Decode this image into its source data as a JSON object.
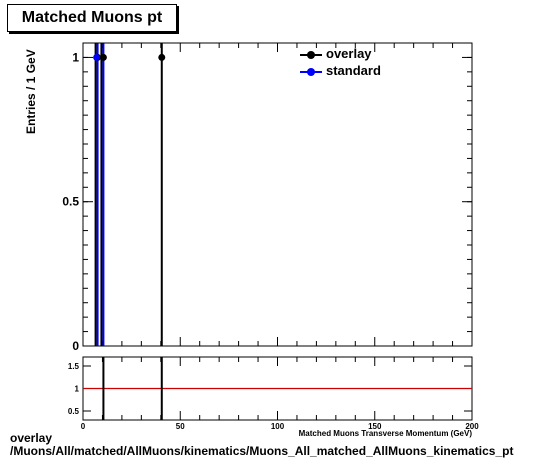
{
  "title": "Matched Muons pt",
  "footer": {
    "line1": "overlay",
    "line2": "/Muons/All/matched/AllMuons/kinematics/Muons_All_matched_AllMuons_kinematics_pt"
  },
  "colors": {
    "overlay": "#000000",
    "standard": "#0000ff",
    "ratio_line": "#cc0000"
  },
  "chart_data": [
    {
      "type": "bar",
      "title": "Matched Muons pt",
      "xlabel": "Matched Muons Transverse Momentum (GeV)",
      "ylabel": "Entries / 1 GeV",
      "xlim": [
        0,
        200
      ],
      "ylim": [
        0,
        1.05
      ],
      "y_ticks": [
        0,
        0.5,
        1
      ],
      "x_ticks": [
        0,
        50,
        100,
        150,
        200
      ],
      "legend_position": "top-right",
      "grid": false,
      "series": [
        {
          "name": "overlay",
          "points": [
            {
              "x": 7.5,
              "y": 1
            },
            {
              "x": 10.5,
              "y": 1
            },
            {
              "x": 40.5,
              "y": 1
            }
          ]
        },
        {
          "name": "standard",
          "points": [
            {
              "x": 7.5,
              "y": 1
            },
            {
              "x": 10.5,
              "y": 1
            }
          ]
        }
      ]
    },
    {
      "type": "line",
      "xlim": [
        0,
        200
      ],
      "ylim": [
        0.3,
        1.7
      ],
      "y_ticks": [
        0.5,
        1,
        1.5
      ],
      "reference_line": 1,
      "ratio_lines_x": [
        10.5,
        40.5
      ]
    }
  ]
}
